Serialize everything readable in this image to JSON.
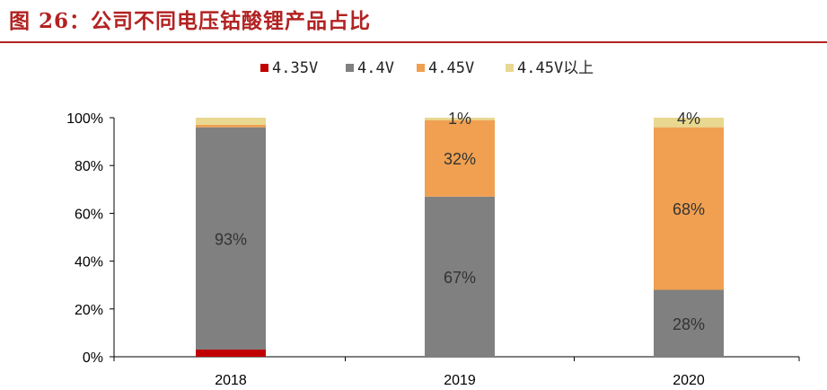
{
  "title": "图 26：公司不同电压钴酸锂产品占比",
  "chart_data": {
    "type": "bar",
    "stacked": true,
    "categories": [
      "2018",
      "2019",
      "2020"
    ],
    "series": [
      {
        "name": "4.35V",
        "color": "#c00000",
        "values": [
          3,
          0,
          0
        ],
        "labels": [
          "",
          "",
          ""
        ]
      },
      {
        "name": "4.4V",
        "color": "#808080",
        "values": [
          93,
          67,
          28
        ],
        "labels": [
          "93%",
          "67%",
          "28%"
        ]
      },
      {
        "name": "4.45V",
        "color": "#f0a050",
        "values": [
          1,
          32,
          68
        ],
        "labels": [
          "",
          "32%",
          "68%"
        ]
      },
      {
        "name": "4.45V以上",
        "color": "#e8d890",
        "values": [
          3,
          1,
          4
        ],
        "labels": [
          "",
          "1%",
          "4%"
        ]
      }
    ],
    "ylim": [
      0,
      100
    ],
    "yticks": [
      "0%",
      "20%",
      "40%",
      "60%",
      "80%",
      "100%"
    ],
    "legend_position": "top",
    "grid": false
  }
}
